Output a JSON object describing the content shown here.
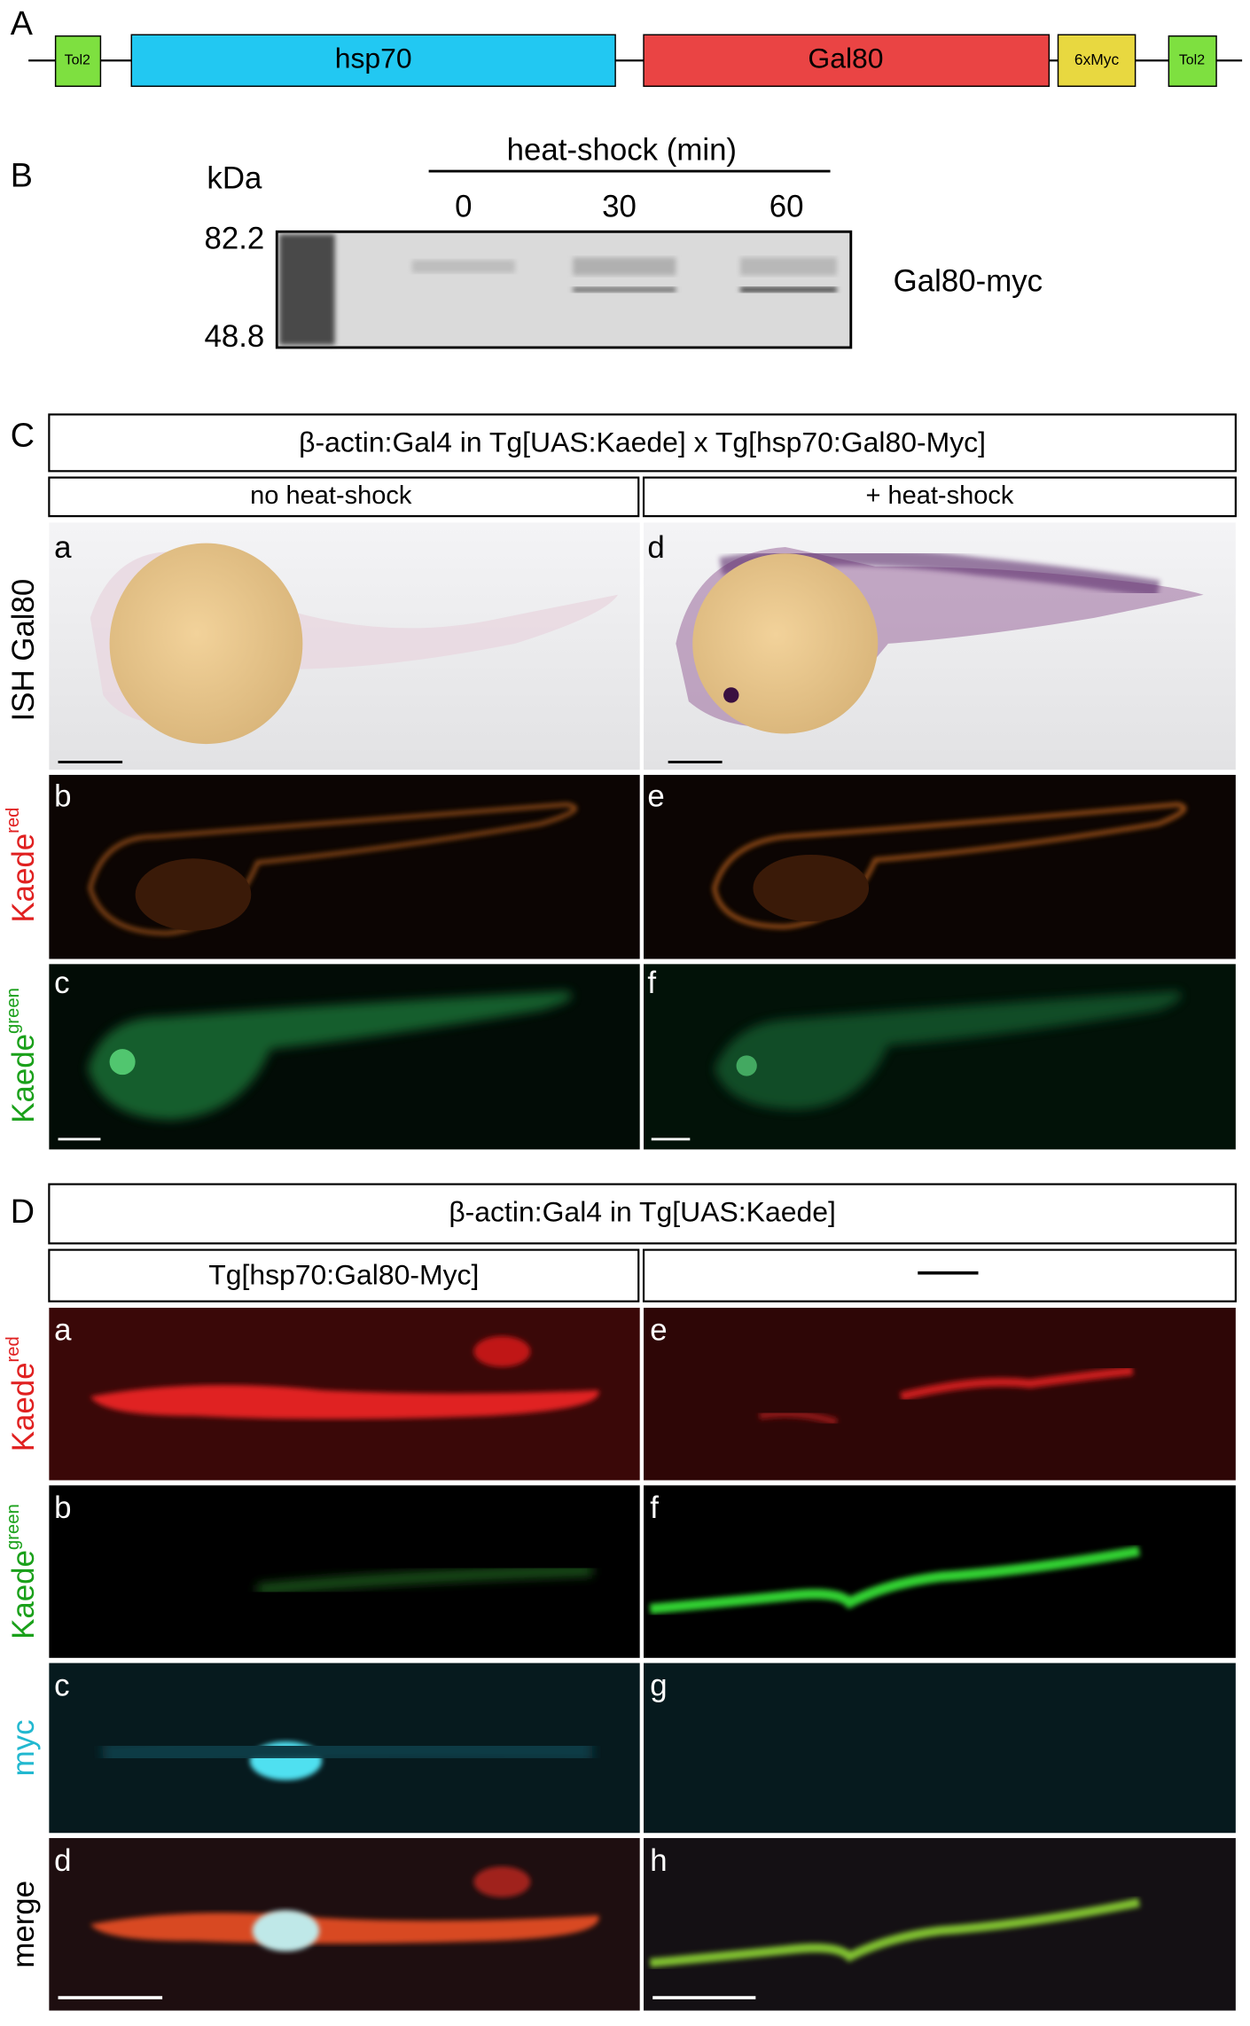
{
  "panel_a": {
    "letter": "A",
    "elements": [
      "Tol2",
      "hsp70",
      "Gal80",
      "6xMyc",
      "Tol2"
    ]
  },
  "panel_b": {
    "letter": "B",
    "unit": "kDa",
    "header": "heat-shock (min)",
    "lanes": [
      "0",
      "30",
      "60"
    ],
    "markers": [
      "82.2",
      "48.8"
    ],
    "band_label": "Gal80-myc"
  },
  "panel_c": {
    "letter": "C",
    "header": "β-actin:Gal4 in Tg[UAS:Kaede] x Tg[hsp70:Gal80-Myc]",
    "columns": [
      "no heat-shock",
      "+ heat-shock"
    ],
    "rows": [
      {
        "base": "ISH Gal80"
      },
      {
        "base": "Kaede",
        "sup": "red"
      },
      {
        "base": "Kaede",
        "sup": "green"
      }
    ],
    "letters": [
      "a",
      "b",
      "c",
      "d",
      "e",
      "f"
    ]
  },
  "panel_d": {
    "letter": "D",
    "header": "β-actin:Gal4 in Tg[UAS:Kaede]",
    "columns": [
      "Tg[hsp70:Gal80-Myc]"
    ],
    "rows": [
      {
        "base": "Kaede",
        "sup": "red"
      },
      {
        "base": "Kaede",
        "sup": "green"
      },
      {
        "base": "myc"
      },
      {
        "base": "merge"
      }
    ],
    "letters": [
      "a",
      "b",
      "c",
      "d",
      "e",
      "f",
      "g",
      "h"
    ]
  }
}
